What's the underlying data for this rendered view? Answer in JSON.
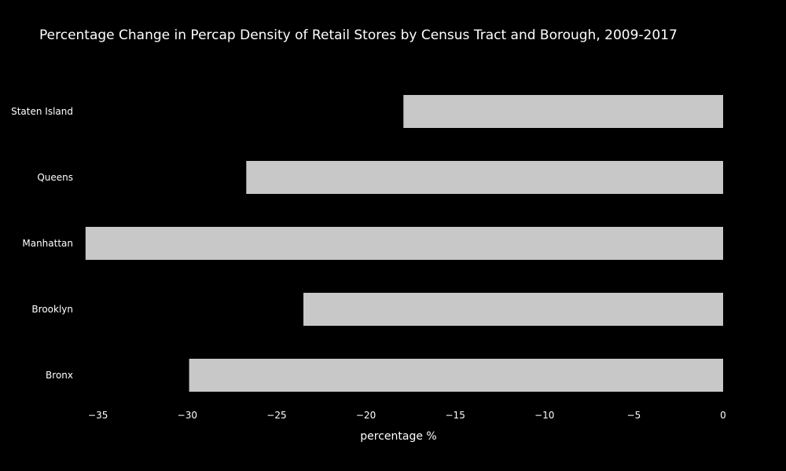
{
  "chart_data": {
    "type": "bar",
    "orientation": "horizontal",
    "title": "Percentage Change in Percap Density of Retail Stores by Census Tract and Borough, 2009-2017",
    "xlabel": "percentage %",
    "ylabel": "",
    "categories": [
      "Bronx",
      "Brooklyn",
      "Manhattan",
      "Queens",
      "Staten Island"
    ],
    "values": [
      -29.9,
      -23.5,
      -35.7,
      -26.7,
      -17.9
    ],
    "xlim": [
      -36,
      0
    ],
    "xticks": [
      -35,
      -30,
      -25,
      -20,
      -15,
      -10,
      -5,
      0
    ],
    "xtick_labels": [
      "−35",
      "−30",
      "−25",
      "−20",
      "−15",
      "−10",
      "−5",
      "0"
    ],
    "bar_color": "#c8c8c8",
    "background": "#000000",
    "grid": false,
    "legend": "none"
  }
}
